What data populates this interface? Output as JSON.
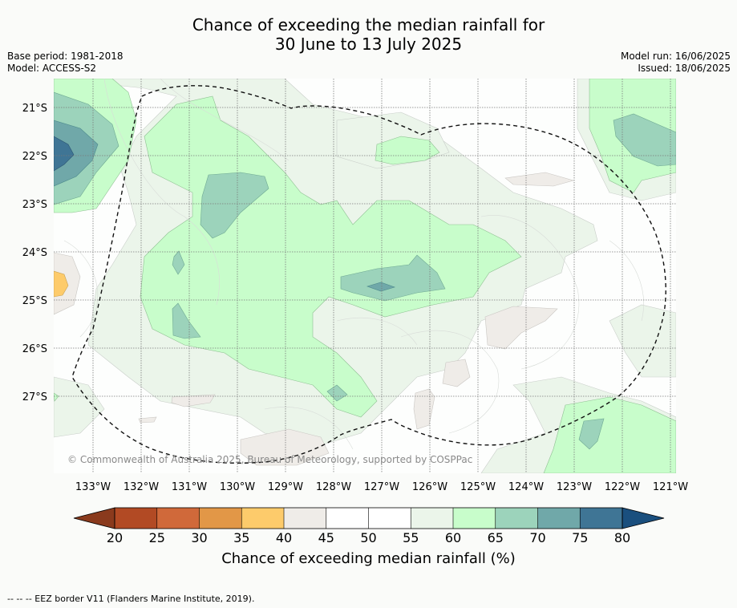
{
  "title_line1": "Chance of exceeding the median rainfall for",
  "title_line2": "30 June to 13 July 2025",
  "meta": {
    "base_period": "Base period: 1981-2018",
    "model": "Model: ACCESS-S2",
    "model_run": "Model run: 16/06/2025",
    "issued": "Issued: 18/06/2025"
  },
  "map": {
    "lat_labels": [
      "21°S",
      "22°S",
      "23°S",
      "24°S",
      "25°S",
      "26°S",
      "27°S"
    ],
    "lon_labels": [
      "133°W",
      "132°W",
      "131°W",
      "130°W",
      "129°W",
      "128°W",
      "127°W",
      "126°W",
      "125°W",
      "124°W",
      "123°W",
      "122°W",
      "121°W"
    ],
    "copyright": "© Commonwealth of Australia 2025, Bureau of Meteorology, supported by COSPPac",
    "colors": {
      "c40_45": "#efece8",
      "c35_40": "#fdcb6b",
      "c55_60": "#ebf5ea",
      "c60_65": "#c8fdcb",
      "c65_70": "#9cd3bb",
      "c70_75": "#70a8a9",
      "c75_80": "#3f7595"
    }
  },
  "colorbar": {
    "ticks": [
      "20",
      "25",
      "30",
      "35",
      "40",
      "45",
      "50",
      "55",
      "60",
      "65",
      "70",
      "75",
      "80"
    ],
    "colors": [
      "#b24a24",
      "#d0693a",
      "#e29747",
      "#fdcb6b",
      "#efece8",
      "#ffffff",
      "#ffffff",
      "#ebf5ea",
      "#c8fdcb",
      "#9cd3bb",
      "#70a8a9",
      "#3f7595"
    ],
    "under_color": "#8a3a1d",
    "over_color": "#1a4f7e",
    "title": "Chance of exceeding median rainfall (%)"
  },
  "footnote": "--  --  -- EEZ border V11 (Flanders Marine Institute, 2019)."
}
